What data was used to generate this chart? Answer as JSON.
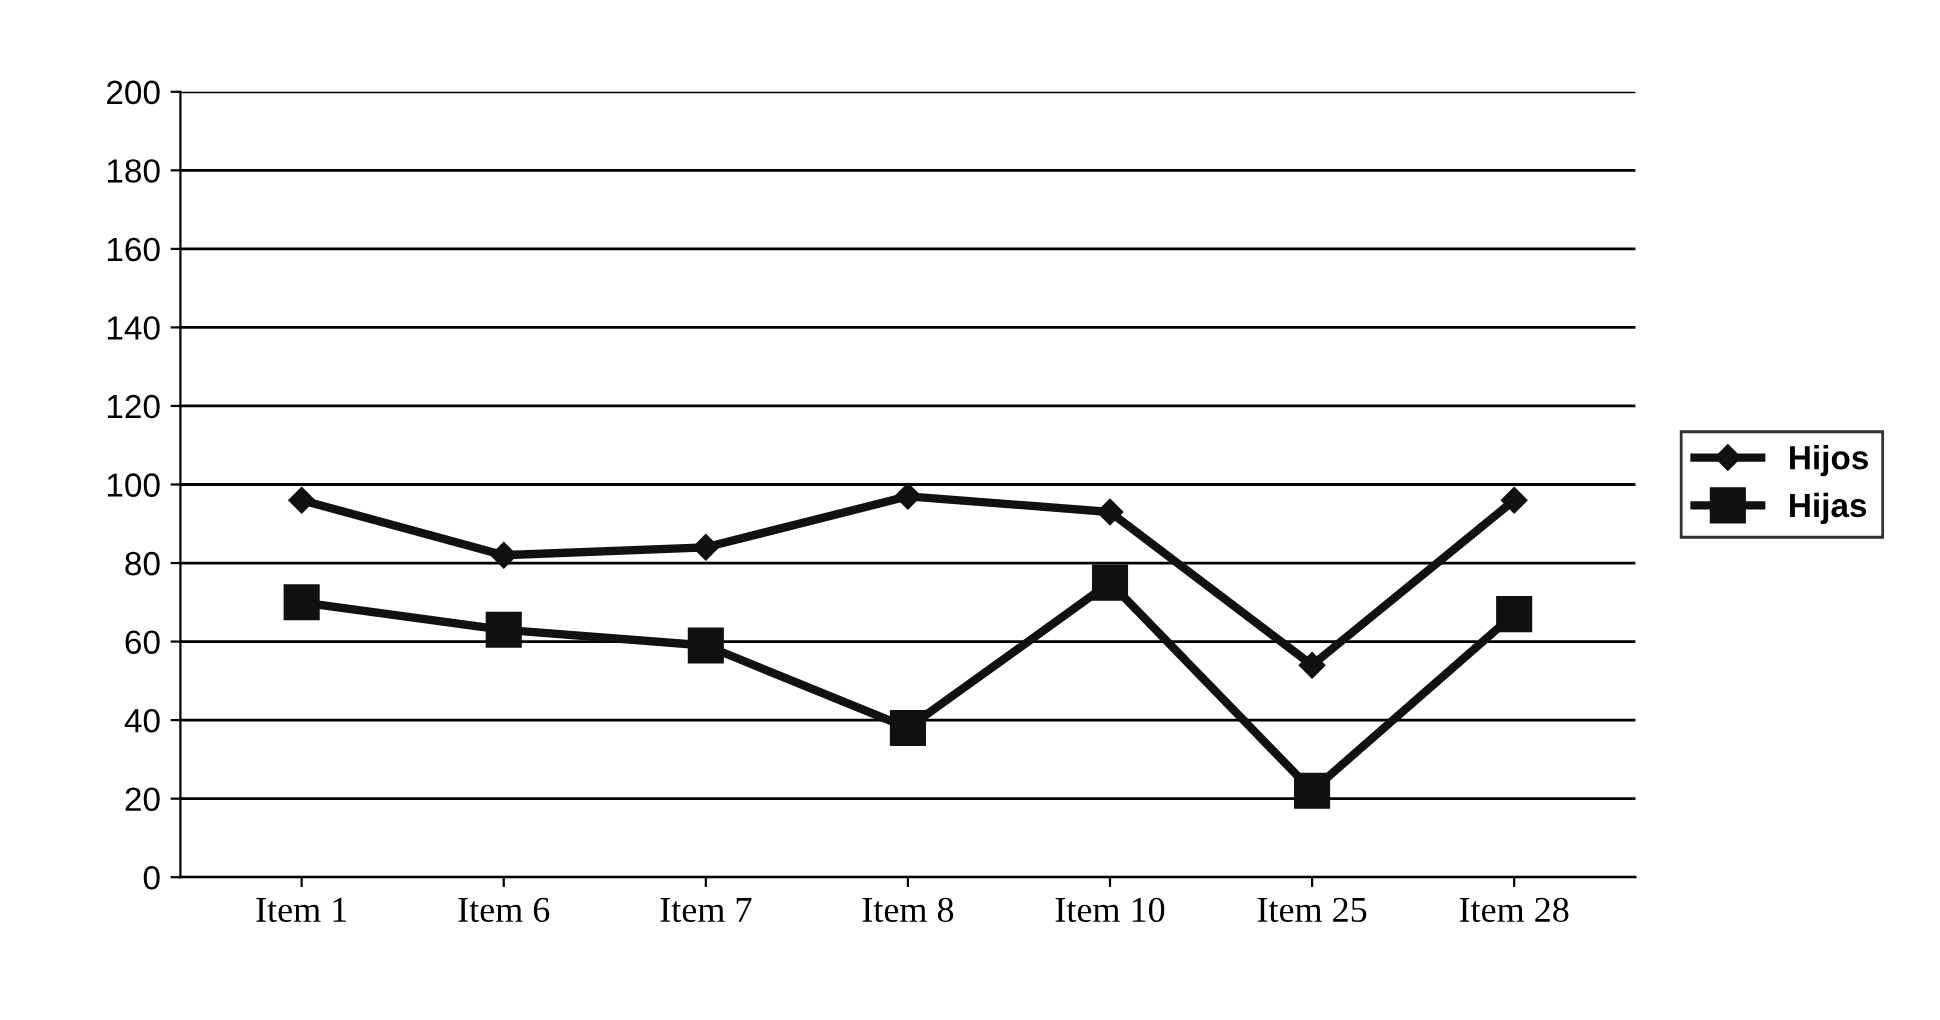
{
  "chart_data": {
    "type": "line",
    "categories": [
      "Item 1",
      "Item 6",
      "Item 7",
      "Item 8",
      "Item 10",
      "Item 25",
      "Item 28"
    ],
    "series": [
      {
        "name": "Hijos",
        "color": "#111111",
        "marker": "diamond",
        "values": [
          96,
          82,
          84,
          97,
          93,
          54,
          96
        ]
      },
      {
        "name": "Hijas",
        "color": "#111111",
        "marker": "square",
        "values": [
          70,
          63,
          59,
          38,
          75,
          22,
          67
        ]
      }
    ],
    "ylim": [
      0,
      200
    ],
    "yticks": [
      0,
      20,
      40,
      60,
      80,
      100,
      120,
      140,
      160,
      180,
      200
    ],
    "grid": "y",
    "legend": "right"
  }
}
